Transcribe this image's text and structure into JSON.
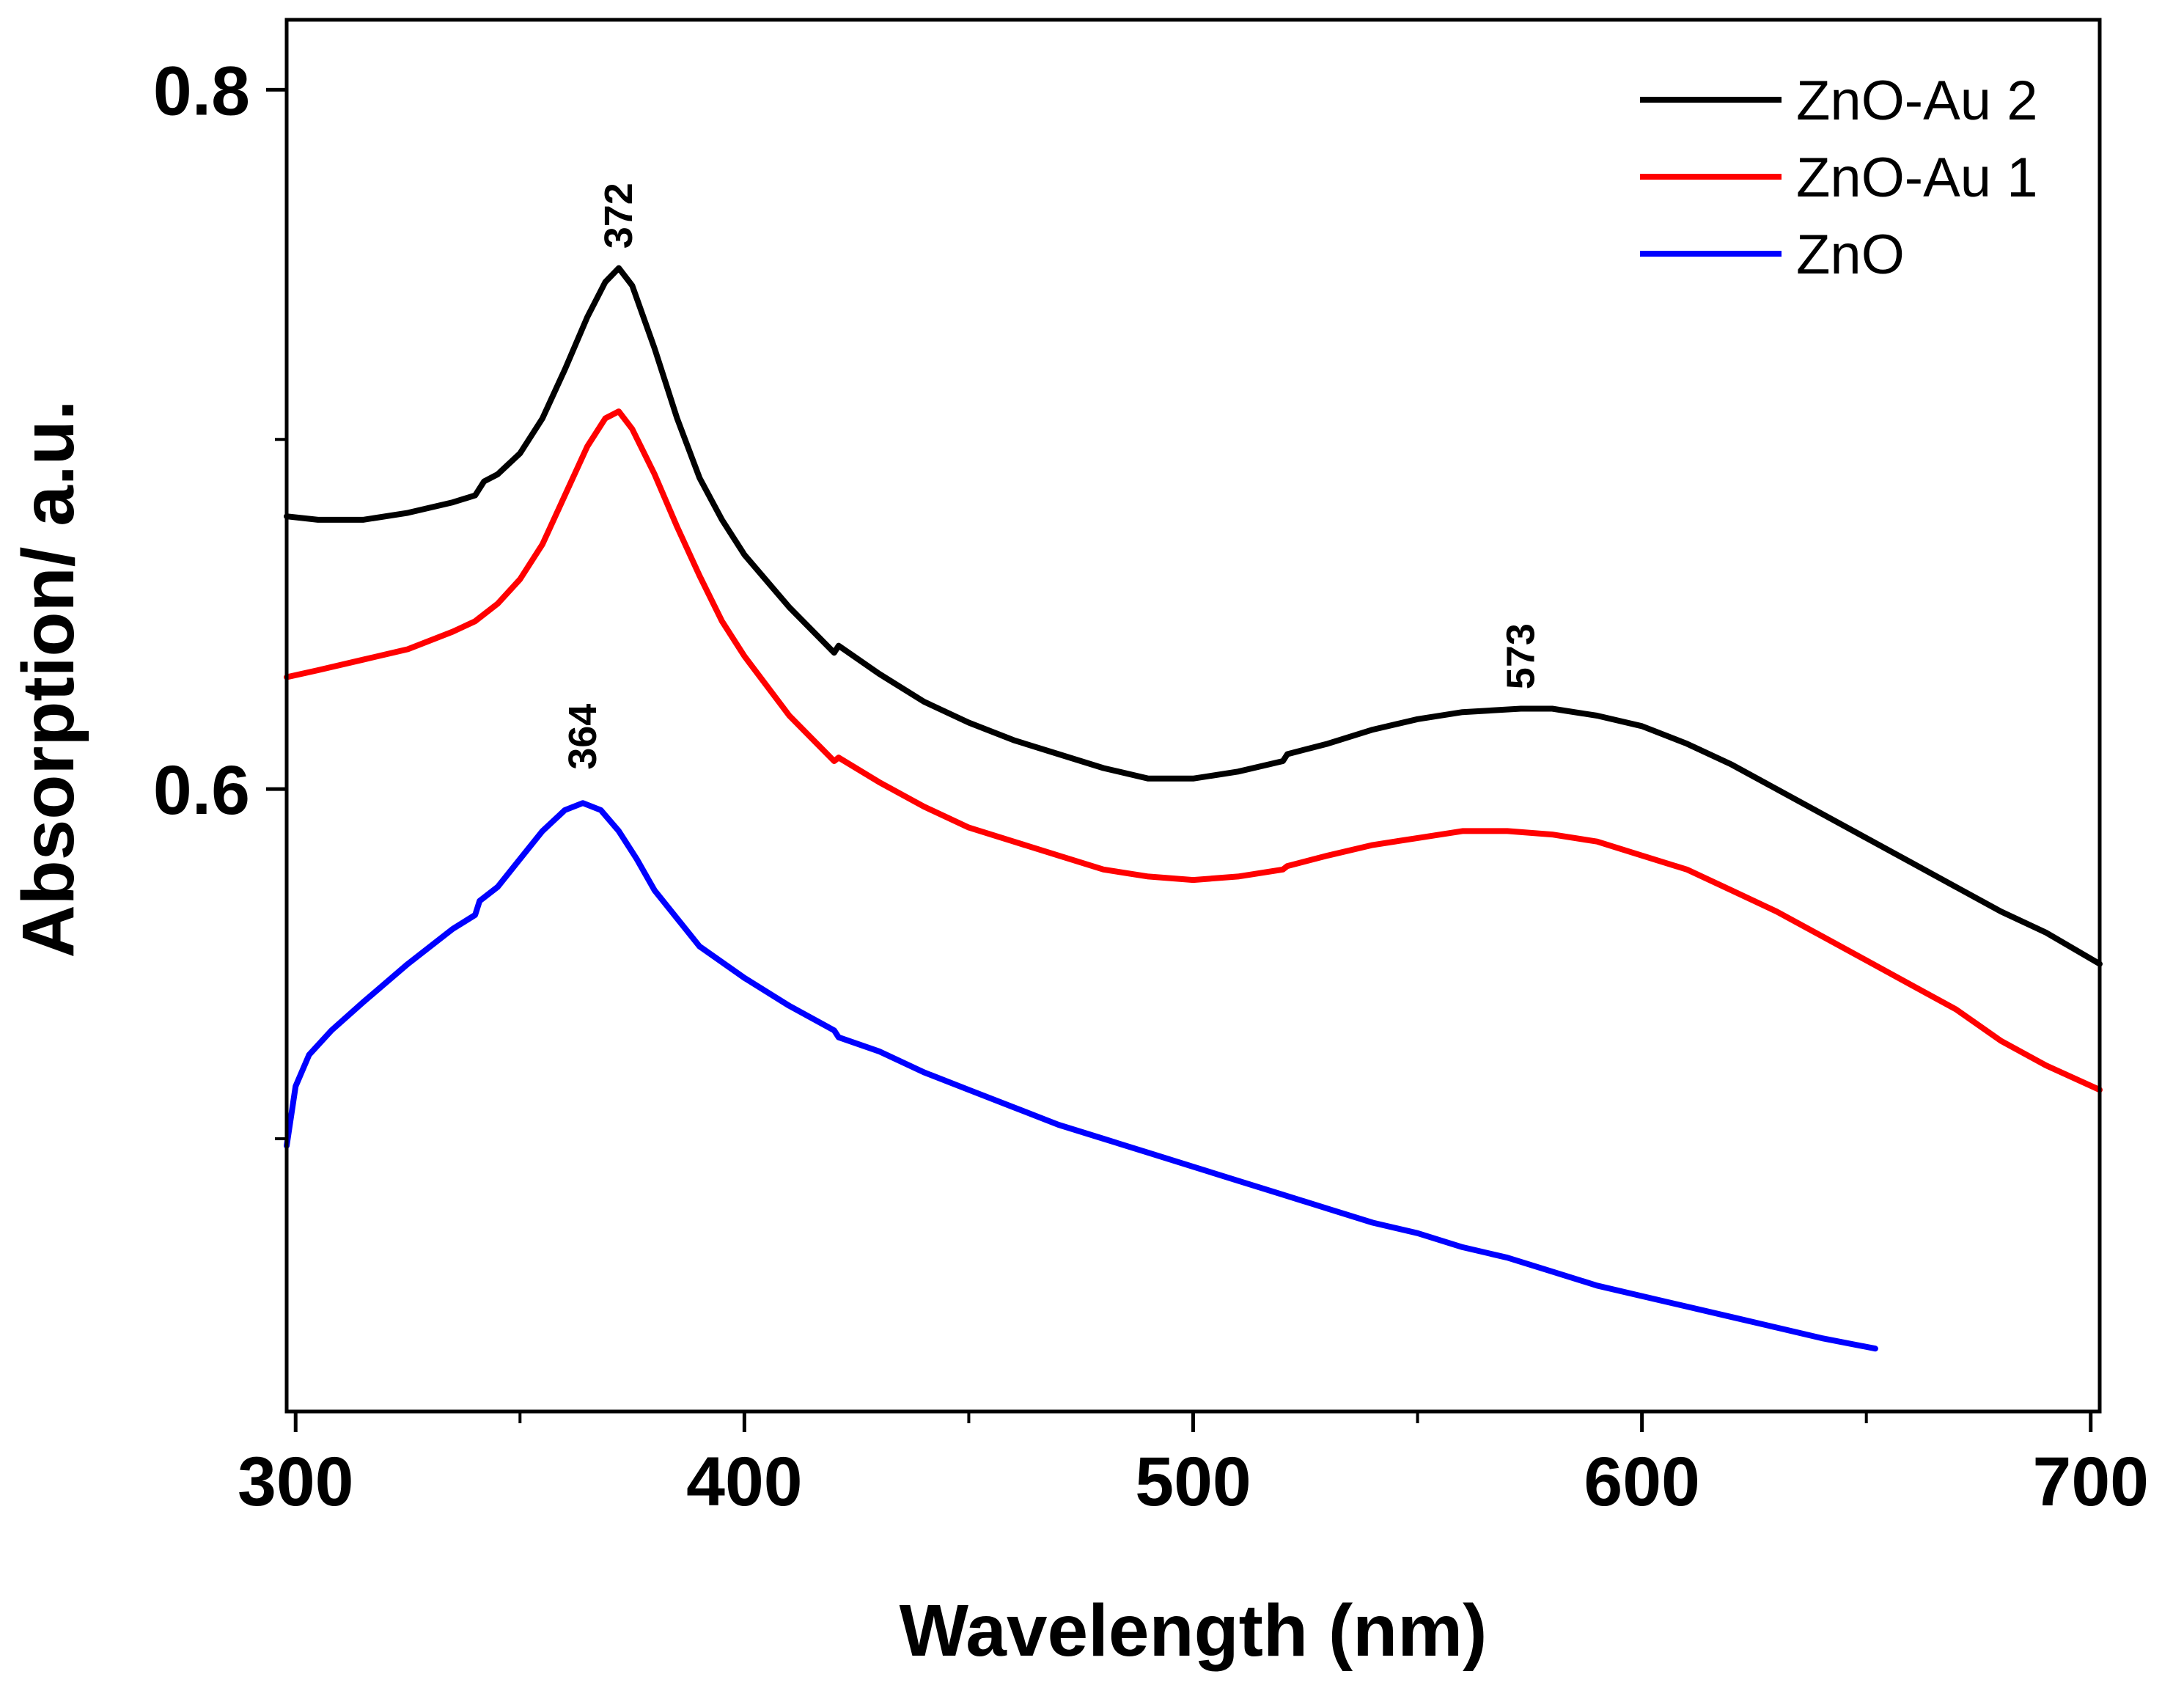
{
  "chart_data": {
    "type": "line",
    "title": "",
    "xlabel": "Wavelength (nm)",
    "ylabel": "Absorption/ a.u.",
    "xlim": [
      298,
      702
    ],
    "ylim": [
      0.422,
      0.82
    ],
    "x_ticks": [
      300,
      400,
      500,
      600,
      700
    ],
    "x_tick_labels": [
      "300",
      "400",
      "500",
      "600",
      "700"
    ],
    "y_ticks": [
      0.6,
      0.8
    ],
    "y_tick_labels": [
      "0.6",
      "0.8"
    ],
    "grid": false,
    "legend_position": "top-right",
    "series": [
      {
        "name": "ZnO-Au 2",
        "color": "#000000",
        "points": [
          [
            298,
            0.678
          ],
          [
            305,
            0.677
          ],
          [
            315,
            0.677
          ],
          [
            325,
            0.679
          ],
          [
            335,
            0.682
          ],
          [
            340,
            0.684
          ],
          [
            342,
            0.688
          ],
          [
            345,
            0.69
          ],
          [
            350,
            0.696
          ],
          [
            355,
            0.706
          ],
          [
            360,
            0.72
          ],
          [
            365,
            0.735
          ],
          [
            369,
            0.745
          ],
          [
            372,
            0.749
          ],
          [
            375,
            0.744
          ],
          [
            380,
            0.726
          ],
          [
            385,
            0.706
          ],
          [
            390,
            0.689
          ],
          [
            395,
            0.677
          ],
          [
            400,
            0.667
          ],
          [
            410,
            0.652
          ],
          [
            420,
            0.639
          ],
          [
            421,
            0.641
          ],
          [
            430,
            0.633
          ],
          [
            440,
            0.625
          ],
          [
            450,
            0.619
          ],
          [
            460,
            0.614
          ],
          [
            470,
            0.61
          ],
          [
            480,
            0.606
          ],
          [
            490,
            0.603
          ],
          [
            500,
            0.603
          ],
          [
            510,
            0.605
          ],
          [
            520,
            0.608
          ],
          [
            521,
            0.61
          ],
          [
            530,
            0.613
          ],
          [
            540,
            0.617
          ],
          [
            550,
            0.62
          ],
          [
            560,
            0.622
          ],
          [
            573,
            0.623
          ],
          [
            580,
            0.623
          ],
          [
            590,
            0.621
          ],
          [
            600,
            0.618
          ],
          [
            610,
            0.613
          ],
          [
            620,
            0.607
          ],
          [
            630,
            0.6
          ],
          [
            640,
            0.593
          ],
          [
            650,
            0.586
          ],
          [
            660,
            0.579
          ],
          [
            670,
            0.572
          ],
          [
            680,
            0.565
          ],
          [
            690,
            0.559
          ],
          [
            702,
            0.55
          ]
        ]
      },
      {
        "name": "ZnO-Au 1",
        "color": "#ff0000",
        "points": [
          [
            298,
            0.632
          ],
          [
            305,
            0.634
          ],
          [
            315,
            0.637
          ],
          [
            325,
            0.64
          ],
          [
            335,
            0.645
          ],
          [
            340,
            0.648
          ],
          [
            342,
            0.65
          ],
          [
            345,
            0.653
          ],
          [
            350,
            0.66
          ],
          [
            355,
            0.67
          ],
          [
            360,
            0.684
          ],
          [
            365,
            0.698
          ],
          [
            369,
            0.706
          ],
          [
            372,
            0.708
          ],
          [
            375,
            0.703
          ],
          [
            380,
            0.69
          ],
          [
            385,
            0.675
          ],
          [
            390,
            0.661
          ],
          [
            395,
            0.648
          ],
          [
            400,
            0.638
          ],
          [
            410,
            0.621
          ],
          [
            420,
            0.608
          ],
          [
            421,
            0.609
          ],
          [
            430,
            0.602
          ],
          [
            440,
            0.595
          ],
          [
            450,
            0.589
          ],
          [
            460,
            0.585
          ],
          [
            470,
            0.581
          ],
          [
            480,
            0.577
          ],
          [
            490,
            0.575
          ],
          [
            500,
            0.574
          ],
          [
            510,
            0.575
          ],
          [
            520,
            0.577
          ],
          [
            521,
            0.578
          ],
          [
            530,
            0.581
          ],
          [
            540,
            0.584
          ],
          [
            550,
            0.586
          ],
          [
            560,
            0.588
          ],
          [
            570,
            0.588
          ],
          [
            580,
            0.587
          ],
          [
            590,
            0.585
          ],
          [
            600,
            0.581
          ],
          [
            610,
            0.577
          ],
          [
            620,
            0.571
          ],
          [
            630,
            0.565
          ],
          [
            640,
            0.558
          ],
          [
            650,
            0.551
          ],
          [
            660,
            0.544
          ],
          [
            670,
            0.537
          ],
          [
            680,
            0.528
          ],
          [
            690,
            0.521
          ],
          [
            702,
            0.514
          ]
        ]
      },
      {
        "name": "ZnO",
        "color": "#0000ff",
        "points": [
          [
            298,
            0.498
          ],
          [
            300,
            0.515
          ],
          [
            303,
            0.524
          ],
          [
            308,
            0.531
          ],
          [
            315,
            0.539
          ],
          [
            325,
            0.55
          ],
          [
            335,
            0.56
          ],
          [
            340,
            0.564
          ],
          [
            341,
            0.568
          ],
          [
            345,
            0.572
          ],
          [
            350,
            0.58
          ],
          [
            355,
            0.588
          ],
          [
            360,
            0.594
          ],
          [
            364,
            0.596
          ],
          [
            368,
            0.594
          ],
          [
            372,
            0.588
          ],
          [
            376,
            0.58
          ],
          [
            380,
            0.571
          ],
          [
            385,
            0.563
          ],
          [
            390,
            0.555
          ],
          [
            400,
            0.546
          ],
          [
            410,
            0.538
          ],
          [
            420,
            0.531
          ],
          [
            421,
            0.529
          ],
          [
            430,
            0.525
          ],
          [
            440,
            0.519
          ],
          [
            450,
            0.514
          ],
          [
            460,
            0.509
          ],
          [
            470,
            0.504
          ],
          [
            480,
            0.5
          ],
          [
            490,
            0.496
          ],
          [
            500,
            0.492
          ],
          [
            510,
            0.488
          ],
          [
            520,
            0.484
          ],
          [
            530,
            0.48
          ],
          [
            540,
            0.476
          ],
          [
            550,
            0.473
          ],
          [
            560,
            0.469
          ],
          [
            570,
            0.466
          ],
          [
            580,
            0.462
          ],
          [
            590,
            0.458
          ],
          [
            600,
            0.455
          ],
          [
            610,
            0.452
          ],
          [
            620,
            0.449
          ],
          [
            630,
            0.446
          ],
          [
            640,
            0.443
          ],
          [
            652,
            0.44
          ]
        ]
      }
    ],
    "annotations": [
      {
        "text": "372",
        "x": 372,
        "y": 0.752
      },
      {
        "text": "364",
        "x": 364,
        "y": 0.603
      },
      {
        "text": "573",
        "x": 573,
        "y": 0.626
      }
    ]
  }
}
